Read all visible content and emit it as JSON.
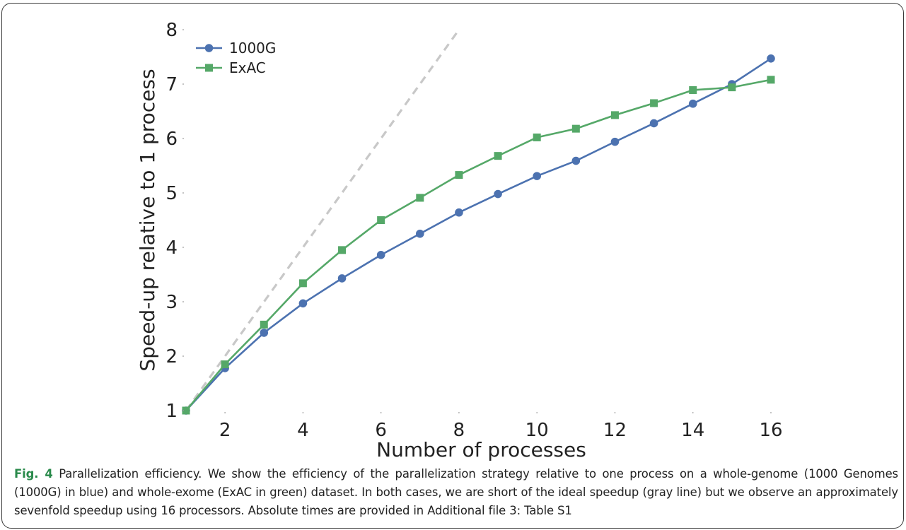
{
  "chart_data": {
    "type": "line",
    "xlabel": "Number of processes",
    "ylabel": "Speed-up relative to 1 process",
    "xlim": [
      1,
      16
    ],
    "ylim": [
      1,
      8
    ],
    "xticks": [
      2,
      4,
      6,
      8,
      10,
      12,
      14,
      16
    ],
    "yticks": [
      1,
      2,
      3,
      4,
      5,
      6,
      7,
      8
    ],
    "grid": false,
    "legend": "top-left",
    "ideal_line": {
      "x": [
        1,
        8
      ],
      "y": [
        1,
        8
      ],
      "style": "dashed",
      "color": "#c8c8c8"
    },
    "series": [
      {
        "name": "1000G",
        "color": "#4c72b0",
        "marker": "circle",
        "x": [
          1,
          2,
          3,
          4,
          5,
          6,
          7,
          8,
          9,
          10,
          11,
          12,
          13,
          14,
          15,
          16
        ],
        "values": [
          1.0,
          1.78,
          2.43,
          2.97,
          3.43,
          3.86,
          4.25,
          4.64,
          4.98,
          5.31,
          5.59,
          5.94,
          6.28,
          6.64,
          7.0,
          7.47
        ]
      },
      {
        "name": "ExAC",
        "color": "#55a868",
        "marker": "square",
        "x": [
          1,
          2,
          3,
          4,
          5,
          6,
          7,
          8,
          9,
          10,
          11,
          12,
          13,
          14,
          15,
          16
        ],
        "values": [
          1.0,
          1.85,
          2.58,
          3.34,
          3.95,
          4.5,
          4.91,
          5.33,
          5.68,
          6.02,
          6.18,
          6.43,
          6.65,
          6.89,
          6.94,
          7.08
        ]
      }
    ]
  },
  "caption": {
    "fig_label": "Fig. 4",
    "text": " Parallelization efficiency. We show the efficiency of the parallelization strategy relative to one process on a whole-genome (1000 Genomes (1000G) in blue) and whole-exome (ExAC in green) dataset. In both cases, we are short of the ideal speedup (gray line) but we observe an approximately sevenfold speedup using 16 processors. Absolute times are provided in Additional file 3: Table S1"
  }
}
